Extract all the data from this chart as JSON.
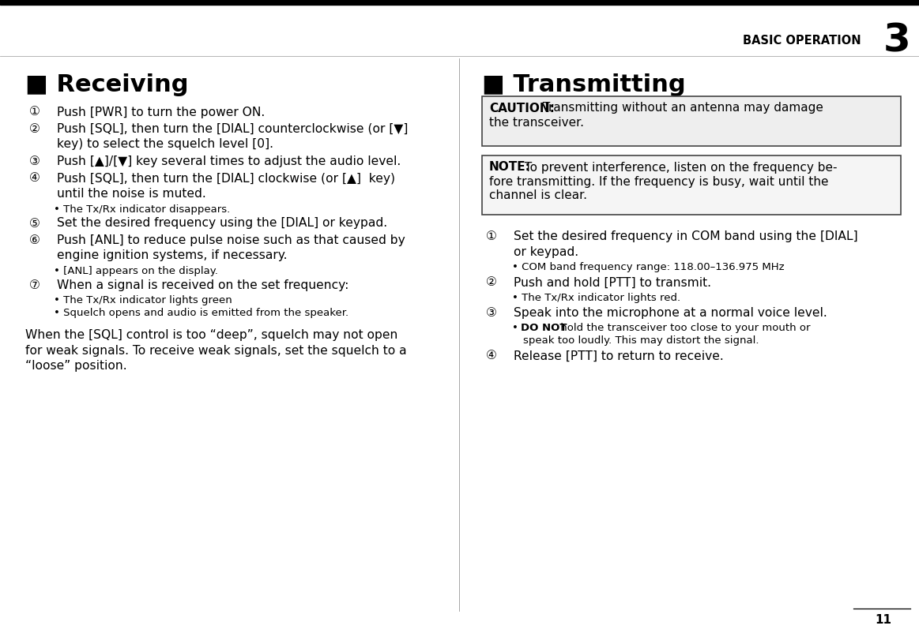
{
  "bg_color": "#ffffff",
  "top_bar_color": "#000000",
  "header_text": "BASIC OPERATION",
  "header_number": "3",
  "page_number": "11",
  "left_section_title": "■ Receiving",
  "right_section_title": "■ Transmitting",
  "caution_bg": "#eeeeee",
  "note_bg": "#f5f5f5",
  "receiving_items": [
    {
      "num": "①",
      "text": "Push [PWR] to turn the power ON.",
      "subs": []
    },
    {
      "num": "②",
      "text": "Push [SQL], then turn the [DIAL] counterclockwise (or [▼]",
      "subs": [
        "cont:key) to select the squelch level [0]."
      ]
    },
    {
      "num": "③",
      "text": "Push [▲]/[▼] key several times to adjust the audio level.",
      "subs": []
    },
    {
      "num": "④",
      "text": "Push [SQL], then turn the [DIAL] clockwise (or [▲]  key)",
      "subs": [
        "cont:until the noise is muted.",
        "bull:• The Tx/Rx indicator disappears."
      ]
    },
    {
      "num": "⑤",
      "text": "Set the desired frequency using the [DIAL] or keypad.",
      "subs": []
    },
    {
      "num": "⑥",
      "text": "Push [ANL] to reduce pulse noise such as that caused by",
      "subs": [
        "cont:engine ignition systems, if necessary.",
        "bull:• [ANL] appears on the display."
      ]
    },
    {
      "num": "⑦",
      "text": "When a signal is received on the set frequency:",
      "subs": [
        "bull:• The Tx/Rx indicator lights green",
        "bull:• Squelch opens and audio is emitted from the speaker."
      ]
    }
  ],
  "receiving_note_lines": [
    "When the [SQL] control is too “deep”, squelch may not open",
    "for weak signals. To receive weak signals, set the squelch to a",
    "“loose” position."
  ],
  "caution_label": "CAUTION:",
  "caution_lines": [
    " Transmitting without an antenna may damage",
    "the transceiver."
  ],
  "note_label": "NOTE:",
  "note_lines": [
    " To prevent interference, listen on the frequency be-",
    "fore transmitting. If the frequency is busy, wait until the",
    "channel is clear."
  ],
  "transmitting_items": [
    {
      "num": "①",
      "text": "Set the desired frequency in COM band using the [DIAL]",
      "subs": [
        "cont:or keypad.",
        "bull:• COM band frequency range: 118.00–136.975 MHz"
      ]
    },
    {
      "num": "②",
      "text": "Push and hold [PTT] to transmit.",
      "subs": [
        "bull:• The Tx/Rx indicator lights red."
      ]
    },
    {
      "num": "③",
      "text": "Speak into the microphone at a normal voice level.",
      "subs": [
        "bull_bold:• DO NOT hold the transceiver too close to your mouth or",
        "bull_indent:   speak too loudly. This may distort the signal."
      ]
    },
    {
      "num": "④",
      "text": "Release [PTT] to return to receive.",
      "subs": []
    }
  ]
}
